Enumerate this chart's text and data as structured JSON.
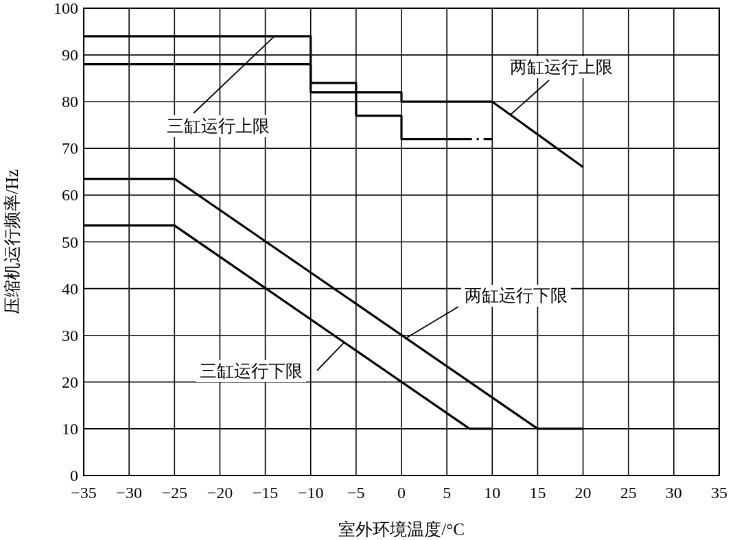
{
  "chart_data": {
    "type": "line",
    "xlabel": "室外环境温度/°C",
    "ylabel": "压缩机运行频率/Hz",
    "xlim": [
      -35,
      35
    ],
    "ylim": [
      0,
      100
    ],
    "xticks": [
      -35,
      -30,
      -25,
      -20,
      -15,
      -10,
      -5,
      0,
      5,
      10,
      15,
      20,
      25,
      30,
      35
    ],
    "yticks": [
      0,
      10,
      20,
      30,
      40,
      50,
      60,
      70,
      80,
      90,
      100
    ],
    "grid": true,
    "line_style": "solid",
    "marker": "none",
    "series": [
      {
        "color": "#000000",
        "x": [
          -35,
          -10,
          -10,
          -5,
          -5,
          0,
          0,
          6.7
        ],
        "values": [
          94,
          94,
          84,
          84,
          77,
          77,
          72,
          72
        ]
      },
      {
        "color": "#000000",
        "x": [
          -35,
          -10,
          -10,
          0,
          0,
          10,
          20
        ],
        "values": [
          88,
          88,
          82,
          82,
          80,
          80,
          66
        ]
      },
      {
        "color": "#000000",
        "x": [
          -35,
          -25,
          15,
          20
        ],
        "values": [
          63.5,
          63.5,
          10,
          10
        ]
      },
      {
        "color": "#000000",
        "x": [
          -35,
          -25,
          7.5,
          10
        ],
        "values": [
          53.5,
          53.5,
          10,
          10
        ]
      },
      {
        "color": "#000000",
        "x": [
          6.7,
          10
        ],
        "values": [
          72,
          72
        ],
        "line_style": "dashed"
      }
    ],
    "annotations": [
      {
        "text": "三缸运行上限",
        "x": -14,
        "y": 94
      },
      {
        "text": "两缸运行上限",
        "x": 12,
        "y": 77.2
      },
      {
        "text": "两缸运行下限",
        "x": 0.5,
        "y": 29.4
      },
      {
        "text": "三缸运行下限",
        "x": -6.3,
        "y": 28.5
      }
    ]
  }
}
